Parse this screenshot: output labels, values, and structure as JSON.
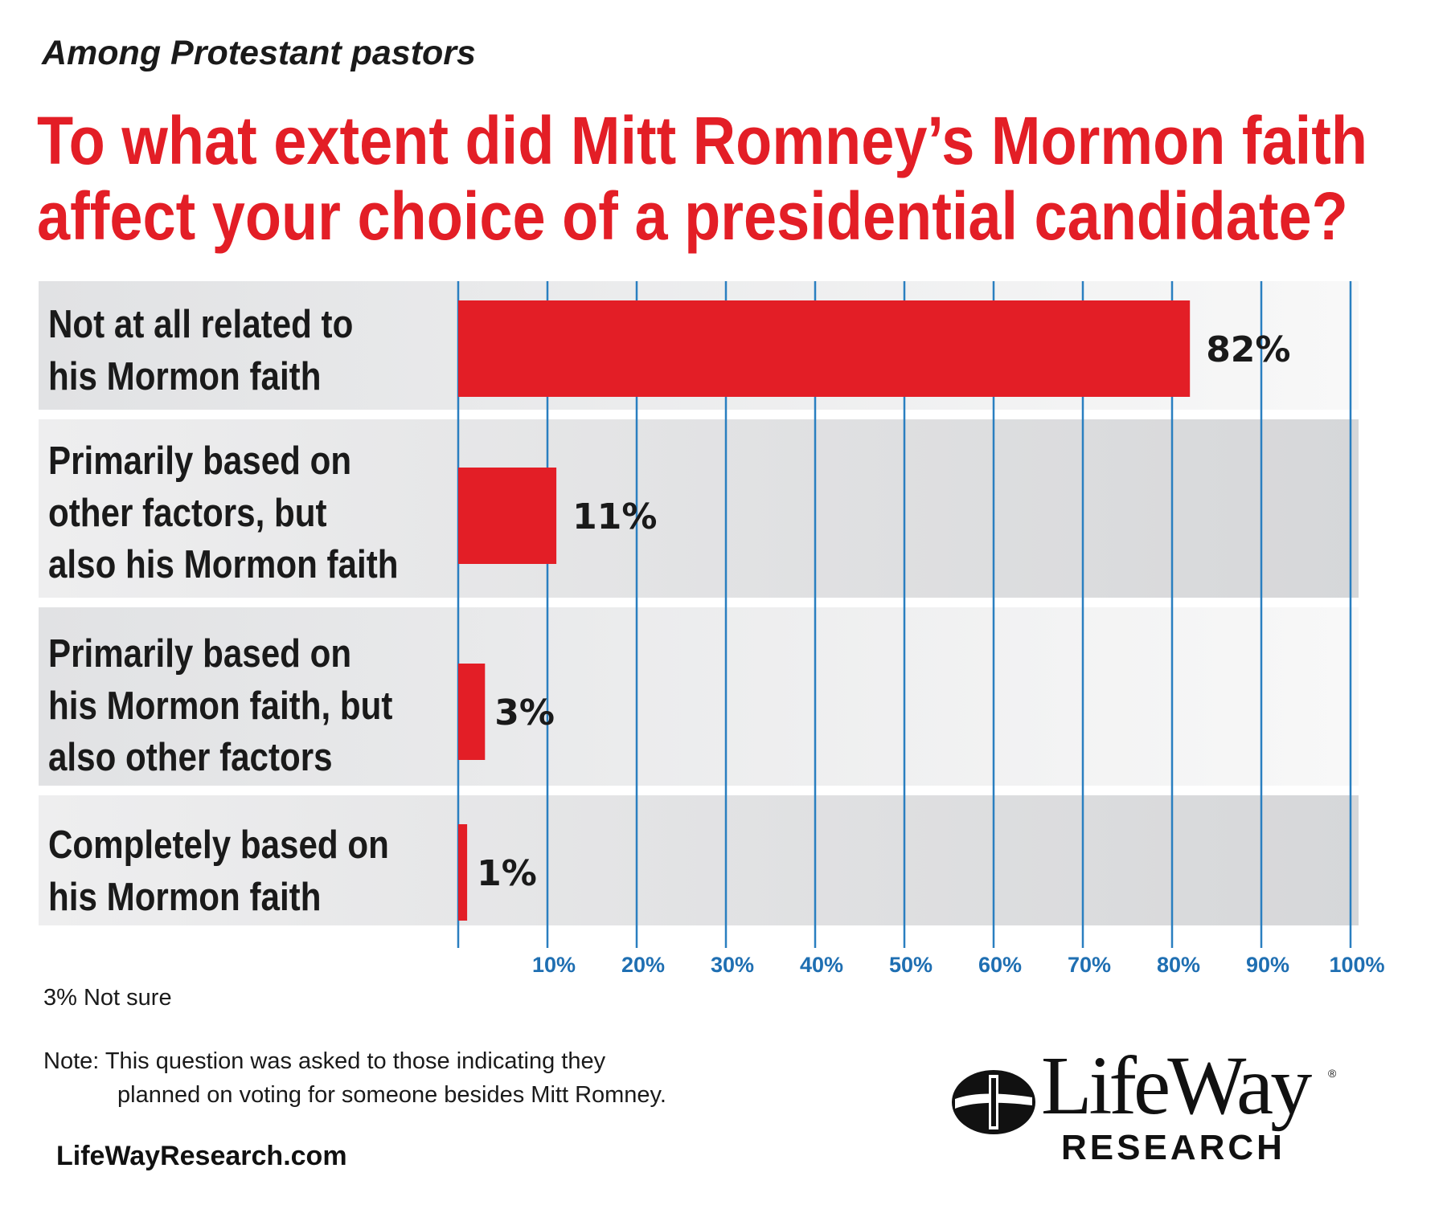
{
  "header": {
    "subtitle": "Among Protestant pastors",
    "title_line1": "To what extent did Mitt Romney’s Mormon faith",
    "title_line2": "affect your choice of a presidential candidate?"
  },
  "chart_data": {
    "type": "bar",
    "orientation": "horizontal",
    "categories": [
      "Not at all related to his Mormon faith",
      "Primarily based on other factors, but also his Mormon faith",
      "Primarily based on his Mormon faith, but also other factors",
      "Completely based on his Mormon faith"
    ],
    "values": [
      82,
      11,
      3,
      1
    ],
    "value_labels": [
      "82%",
      "11%",
      "3%",
      "1%"
    ],
    "xlim": [
      0,
      100
    ],
    "xticks": [
      10,
      20,
      30,
      40,
      50,
      60,
      70,
      80,
      90,
      100
    ],
    "xtick_labels": [
      "10%",
      "20%",
      "30%",
      "40%",
      "50%",
      "60%",
      "70%",
      "80%",
      "90%",
      "100%"
    ],
    "grid": true,
    "bar_color": "#e31e26",
    "grid_color": "#2a7fc0"
  },
  "row_labels": [
    [
      "Not at all related to",
      "his Mormon faith"
    ],
    [
      "Primarily based on",
      "other factors, but",
      "also his Mormon faith"
    ],
    [
      "Primarily based on",
      "his Mormon faith, but",
      "also other factors"
    ],
    [
      "Completely based on",
      "his Mormon faith"
    ]
  ],
  "notes": {
    "not_sure": "3% Not sure",
    "note_line1": "Note: This question was asked to those indicating they",
    "note_line2": "planned on voting for someone besides Mitt Romney.",
    "website": "LifeWayResearch.com"
  },
  "logo": {
    "word": "LifeWay",
    "sub": "RESEARCH",
    "mark": "®"
  },
  "colors": {
    "title": "#e31e26",
    "bar": "#e31e26",
    "grid": "#2a7fc0",
    "tick_text": "#1f6fb2"
  }
}
